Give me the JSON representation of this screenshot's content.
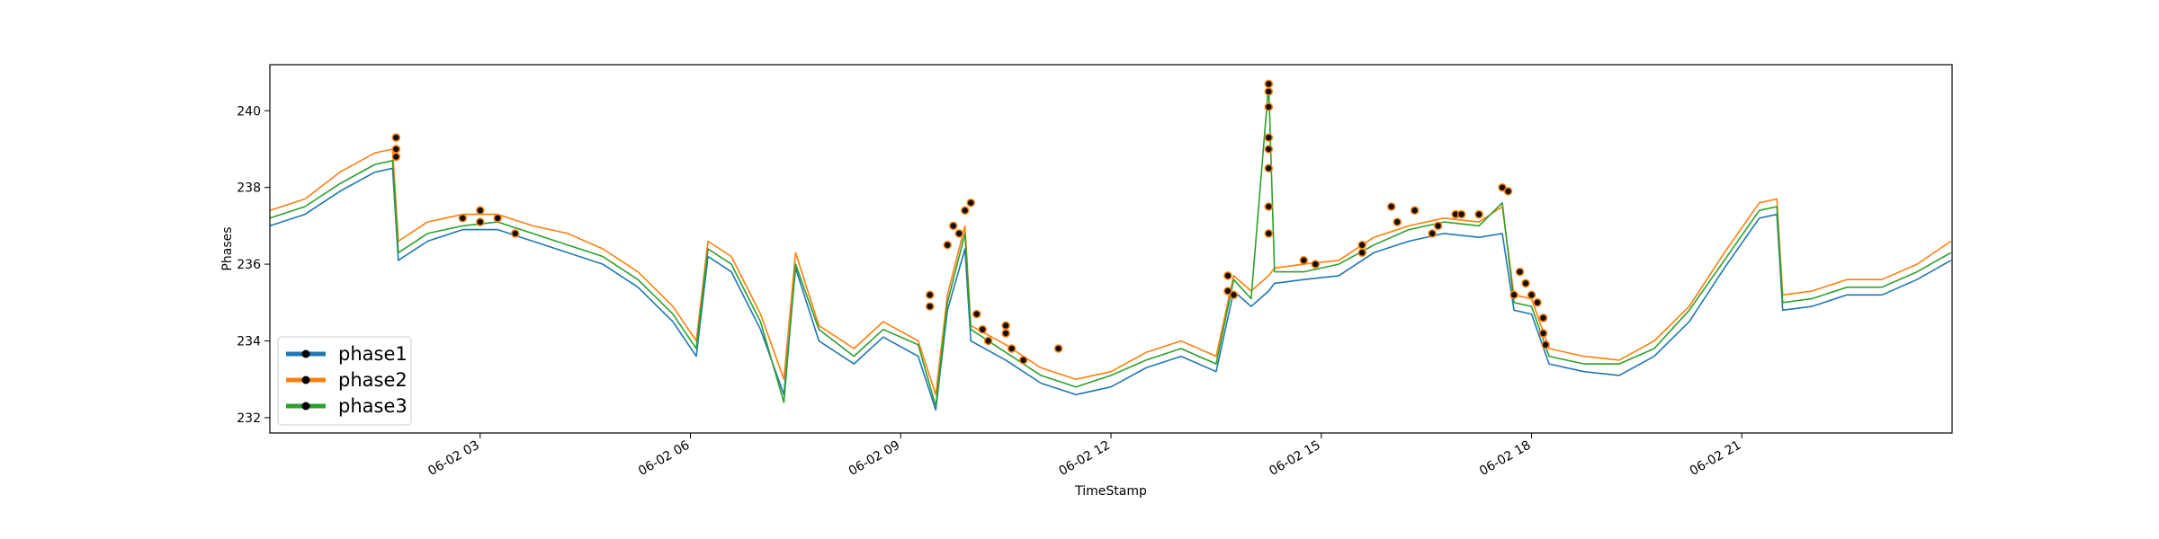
{
  "chart_data": {
    "type": "line",
    "title": "",
    "xlabel": "TimeStamp",
    "ylabel": "Phases",
    "xlim": [
      "2024-06-02 00:00",
      "2024-06-03 00:00"
    ],
    "ylim": [
      231.6,
      241.2
    ],
    "x_ticks": [
      {
        "t": "2024-06-02 03:00",
        "label": "06-02 03"
      },
      {
        "t": "2024-06-02 06:00",
        "label": "06-02 06"
      },
      {
        "t": "2024-06-02 09:00",
        "label": "06-02 09"
      },
      {
        "t": "2024-06-02 12:00",
        "label": "06-02 12"
      },
      {
        "t": "2024-06-02 15:00",
        "label": "06-02 15"
      },
      {
        "t": "2024-06-02 18:00",
        "label": "06-02 18"
      },
      {
        "t": "2024-06-02 21:00",
        "label": "06-02 21"
      }
    ],
    "y_ticks": [
      232,
      234,
      236,
      238,
      240
    ],
    "grid": false,
    "legend": {
      "position": "lower-left",
      "entries": [
        "phase1",
        "phase2",
        "phase3"
      ]
    },
    "series": [
      {
        "name": "phase1",
        "color": "#1f77b4",
        "x": [
          "2024-06-02 00:00",
          "2024-06-02 00:30",
          "2024-06-02 01:00",
          "2024-06-02 01:30",
          "2024-06-02 01:45",
          "2024-06-02 01:50",
          "2024-06-02 02:15",
          "2024-06-02 02:45",
          "2024-06-02 03:15",
          "2024-06-02 03:45",
          "2024-06-02 04:15",
          "2024-06-02 04:45",
          "2024-06-02 05:15",
          "2024-06-02 05:45",
          "2024-06-02 06:05",
          "2024-06-02 06:15",
          "2024-06-02 06:35",
          "2024-06-02 07:00",
          "2024-06-02 07:20",
          "2024-06-02 07:30",
          "2024-06-02 07:50",
          "2024-06-02 08:20",
          "2024-06-02 08:45",
          "2024-06-02 09:15",
          "2024-06-02 09:30",
          "2024-06-02 09:40",
          "2024-06-02 09:55",
          "2024-06-02 10:00",
          "2024-06-02 10:30",
          "2024-06-02 11:00",
          "2024-06-02 11:30",
          "2024-06-02 12:00",
          "2024-06-02 12:30",
          "2024-06-02 13:00",
          "2024-06-02 13:30",
          "2024-06-02 13:45",
          "2024-06-02 14:00",
          "2024-06-02 14:15",
          "2024-06-02 14:20",
          "2024-06-02 14:45",
          "2024-06-02 15:15",
          "2024-06-02 15:45",
          "2024-06-02 16:15",
          "2024-06-02 16:45",
          "2024-06-02 17:15",
          "2024-06-02 17:35",
          "2024-06-02 17:45",
          "2024-06-02 18:00",
          "2024-06-02 18:15",
          "2024-06-02 18:45",
          "2024-06-02 19:15",
          "2024-06-02 19:45",
          "2024-06-02 20:15",
          "2024-06-02 20:45",
          "2024-06-02 21:15",
          "2024-06-02 21:30",
          "2024-06-02 21:35",
          "2024-06-02 22:00",
          "2024-06-02 22:30",
          "2024-06-02 23:00",
          "2024-06-02 23:30",
          "2024-06-02 23:59"
        ],
        "values": [
          237.0,
          237.3,
          237.9,
          238.4,
          238.5,
          236.1,
          236.6,
          236.9,
          236.9,
          236.6,
          236.3,
          236.0,
          235.4,
          234.5,
          233.6,
          236.2,
          235.8,
          234.3,
          232.6,
          235.9,
          234.0,
          233.4,
          234.1,
          233.6,
          232.2,
          234.8,
          236.4,
          234.0,
          233.5,
          232.9,
          232.6,
          232.8,
          233.3,
          233.6,
          233.2,
          235.3,
          234.9,
          235.3,
          235.5,
          235.6,
          235.7,
          236.3,
          236.6,
          236.8,
          236.7,
          236.8,
          234.8,
          234.7,
          233.4,
          233.2,
          233.1,
          233.6,
          234.5,
          235.9,
          237.2,
          237.3,
          234.8,
          234.9,
          235.2,
          235.2,
          235.6,
          236.1
        ]
      },
      {
        "name": "phase2",
        "color": "#ff7f0e",
        "x": [
          "2024-06-02 00:00",
          "2024-06-02 00:30",
          "2024-06-02 01:00",
          "2024-06-02 01:30",
          "2024-06-02 01:45",
          "2024-06-02 01:50",
          "2024-06-02 02:15",
          "2024-06-02 02:45",
          "2024-06-02 03:15",
          "2024-06-02 03:45",
          "2024-06-02 04:15",
          "2024-06-02 04:45",
          "2024-06-02 05:15",
          "2024-06-02 05:45",
          "2024-06-02 06:05",
          "2024-06-02 06:15",
          "2024-06-02 06:35",
          "2024-06-02 07:00",
          "2024-06-02 07:20",
          "2024-06-02 07:30",
          "2024-06-02 07:50",
          "2024-06-02 08:20",
          "2024-06-02 08:45",
          "2024-06-02 09:15",
          "2024-06-02 09:30",
          "2024-06-02 09:40",
          "2024-06-02 09:55",
          "2024-06-02 10:00",
          "2024-06-02 10:30",
          "2024-06-02 11:00",
          "2024-06-02 11:30",
          "2024-06-02 12:00",
          "2024-06-02 12:30",
          "2024-06-02 13:00",
          "2024-06-02 13:30",
          "2024-06-02 13:45",
          "2024-06-02 14:00",
          "2024-06-02 14:15",
          "2024-06-02 14:20",
          "2024-06-02 14:45",
          "2024-06-02 15:15",
          "2024-06-02 15:45",
          "2024-06-02 16:15",
          "2024-06-02 16:45",
          "2024-06-02 17:15",
          "2024-06-02 17:35",
          "2024-06-02 17:45",
          "2024-06-02 18:00",
          "2024-06-02 18:15",
          "2024-06-02 18:45",
          "2024-06-02 19:15",
          "2024-06-02 19:45",
          "2024-06-02 20:15",
          "2024-06-02 20:45",
          "2024-06-02 21:15",
          "2024-06-02 21:30",
          "2024-06-02 21:35",
          "2024-06-02 22:00",
          "2024-06-02 22:30",
          "2024-06-02 23:00",
          "2024-06-02 23:30",
          "2024-06-02 23:59"
        ],
        "values": [
          237.4,
          237.7,
          238.4,
          238.9,
          239.0,
          236.6,
          237.1,
          237.3,
          237.3,
          237.0,
          236.8,
          236.4,
          235.8,
          234.9,
          234.0,
          236.6,
          236.2,
          234.7,
          233.0,
          236.3,
          234.4,
          233.8,
          234.5,
          234.0,
          232.6,
          235.2,
          237.0,
          234.4,
          233.9,
          233.3,
          233.0,
          233.2,
          233.7,
          234.0,
          233.6,
          235.7,
          235.3,
          235.7,
          235.9,
          236.0,
          236.1,
          236.7,
          237.0,
          237.2,
          237.1,
          237.5,
          235.2,
          235.1,
          233.8,
          233.6,
          233.5,
          234.0,
          234.9,
          236.3,
          237.6,
          237.7,
          235.2,
          235.3,
          235.6,
          235.6,
          236.0,
          236.6
        ]
      },
      {
        "name": "phase3",
        "color": "#2ca02c",
        "x": [
          "2024-06-02 00:00",
          "2024-06-02 00:30",
          "2024-06-02 01:00",
          "2024-06-02 01:30",
          "2024-06-02 01:45",
          "2024-06-02 01:50",
          "2024-06-02 02:15",
          "2024-06-02 02:45",
          "2024-06-02 03:15",
          "2024-06-02 03:45",
          "2024-06-02 04:15",
          "2024-06-02 04:45",
          "2024-06-02 05:15",
          "2024-06-02 05:45",
          "2024-06-02 06:05",
          "2024-06-02 06:15",
          "2024-06-02 06:35",
          "2024-06-02 07:00",
          "2024-06-02 07:20",
          "2024-06-02 07:30",
          "2024-06-02 07:50",
          "2024-06-02 08:20",
          "2024-06-02 08:45",
          "2024-06-02 09:15",
          "2024-06-02 09:30",
          "2024-06-02 09:40",
          "2024-06-02 09:55",
          "2024-06-02 10:00",
          "2024-06-02 10:30",
          "2024-06-02 11:00",
          "2024-06-02 11:30",
          "2024-06-02 12:00",
          "2024-06-02 12:30",
          "2024-06-02 13:00",
          "2024-06-02 13:30",
          "2024-06-02 13:45",
          "2024-06-02 14:00",
          "2024-06-02 14:15",
          "2024-06-02 14:20",
          "2024-06-02 14:45",
          "2024-06-02 15:15",
          "2024-06-02 15:45",
          "2024-06-02 16:15",
          "2024-06-02 16:45",
          "2024-06-02 17:15",
          "2024-06-02 17:35",
          "2024-06-02 17:45",
          "2024-06-02 18:00",
          "2024-06-02 18:15",
          "2024-06-02 18:45",
          "2024-06-02 19:15",
          "2024-06-02 19:45",
          "2024-06-02 20:15",
          "2024-06-02 20:45",
          "2024-06-02 21:15",
          "2024-06-02 21:30",
          "2024-06-02 21:35",
          "2024-06-02 22:00",
          "2024-06-02 22:30",
          "2024-06-02 23:00",
          "2024-06-02 23:30",
          "2024-06-02 23:59"
        ],
        "values": [
          237.2,
          237.5,
          238.1,
          238.6,
          238.7,
          236.3,
          236.8,
          237.0,
          237.1,
          236.8,
          236.5,
          236.2,
          235.6,
          234.7,
          233.8,
          236.4,
          236.0,
          234.5,
          232.4,
          236.0,
          234.3,
          233.6,
          234.3,
          233.9,
          232.3,
          235.0,
          236.8,
          234.3,
          233.7,
          233.1,
          232.8,
          233.1,
          233.5,
          233.8,
          233.4,
          235.6,
          235.1,
          240.7,
          235.8,
          235.8,
          236.0,
          236.5,
          236.9,
          237.1,
          237.0,
          237.6,
          235.0,
          234.9,
          233.6,
          233.4,
          233.4,
          233.8,
          234.8,
          236.1,
          237.4,
          237.5,
          235.0,
          235.1,
          235.4,
          235.4,
          235.8,
          236.3
        ]
      }
    ],
    "markers": {
      "x": [
        "2024-06-02 01:48",
        "2024-06-02 01:48",
        "2024-06-02 01:48",
        "2024-06-02 02:45",
        "2024-06-02 03:00",
        "2024-06-02 03:00",
        "2024-06-02 03:15",
        "2024-06-02 03:30",
        "2024-06-02 09:25",
        "2024-06-02 09:25",
        "2024-06-02 09:40",
        "2024-06-02 09:45",
        "2024-06-02 09:50",
        "2024-06-02 09:55",
        "2024-06-02 10:00",
        "2024-06-02 10:05",
        "2024-06-02 10:10",
        "2024-06-02 10:15",
        "2024-06-02 10:30",
        "2024-06-02 10:30",
        "2024-06-02 10:35",
        "2024-06-02 10:45",
        "2024-06-02 11:15",
        "2024-06-02 13:40",
        "2024-06-02 13:40",
        "2024-06-02 13:45",
        "2024-06-02 14:15",
        "2024-06-02 14:15",
        "2024-06-02 14:15",
        "2024-06-02 14:15",
        "2024-06-02 14:15",
        "2024-06-02 14:15",
        "2024-06-02 14:15",
        "2024-06-02 14:15",
        "2024-06-02 14:45",
        "2024-06-02 14:55",
        "2024-06-02 15:35",
        "2024-06-02 15:35",
        "2024-06-02 16:00",
        "2024-06-02 16:05",
        "2024-06-02 16:20",
        "2024-06-02 16:35",
        "2024-06-02 16:40",
        "2024-06-02 16:55",
        "2024-06-02 17:00",
        "2024-06-02 17:15",
        "2024-06-02 17:35",
        "2024-06-02 17:40",
        "2024-06-02 17:45",
        "2024-06-02 17:50",
        "2024-06-02 17:55",
        "2024-06-02 18:00",
        "2024-06-02 18:05",
        "2024-06-02 18:10",
        "2024-06-02 18:10",
        "2024-06-02 18:12"
      ],
      "values": [
        239.3,
        239.0,
        238.8,
        237.2,
        237.4,
        237.1,
        237.2,
        236.8,
        235.2,
        234.9,
        236.5,
        237.0,
        236.8,
        237.4,
        237.6,
        234.7,
        234.3,
        234.0,
        234.4,
        234.2,
        233.8,
        233.5,
        233.8,
        235.7,
        235.3,
        235.2,
        240.7,
        240.5,
        240.1,
        239.3,
        239.0,
        238.5,
        237.5,
        236.8,
        236.1,
        236.0,
        236.5,
        236.3,
        237.5,
        237.1,
        237.4,
        236.8,
        237.0,
        237.3,
        237.3,
        237.3,
        238.0,
        237.9,
        235.2,
        235.8,
        235.5,
        235.2,
        235.0,
        234.6,
        234.2,
        233.9
      ]
    }
  }
}
